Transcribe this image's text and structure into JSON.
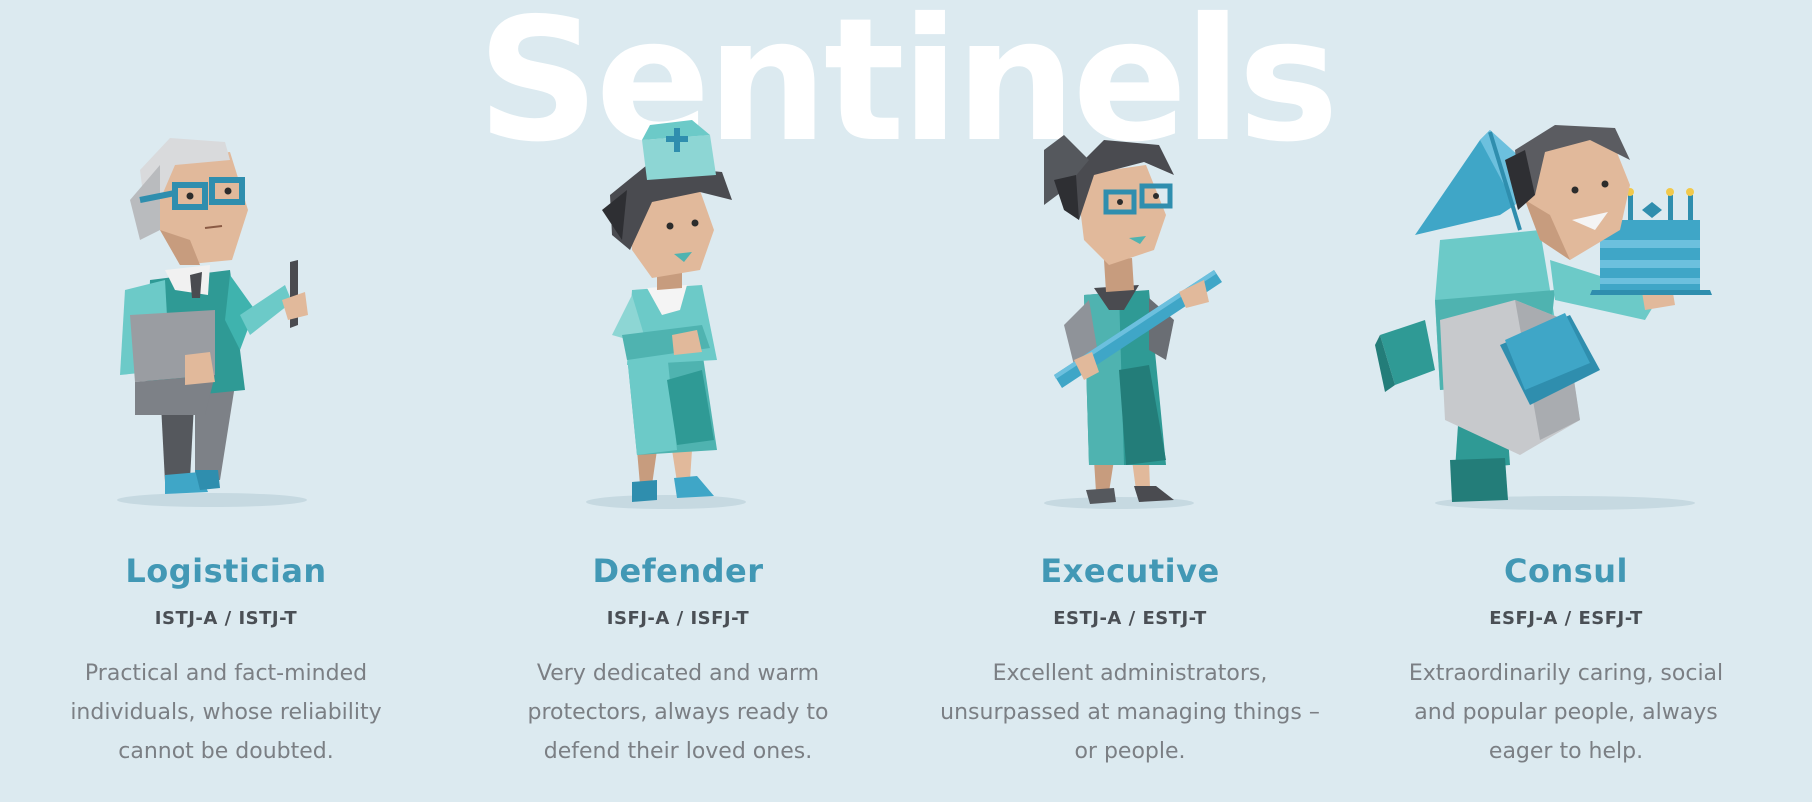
{
  "page": {
    "title": "Sentinels",
    "colors": {
      "background": "#dceaf0",
      "title": "#ffffff",
      "accent": "#4298b5",
      "code": "#4a4f55",
      "description": "#7b7f84",
      "teal": "#4fb3b0",
      "blue": "#3fa6c7",
      "skin": "#e1b99b",
      "hair_dark": "#4a4b50",
      "gray": "#8f9399"
    }
  },
  "types": [
    {
      "name": "Logistician",
      "code": "ISTJ-A / ISTJ-T",
      "description": "Practical and fact-minded individuals, whose reliability cannot be doubted.",
      "illustration": "logistician-figure-icon"
    },
    {
      "name": "Defender",
      "code": "ISFJ-A / ISFJ-T",
      "description": "Very dedicated and warm protectors, always ready to defend their loved ones.",
      "illustration": "defender-figure-icon"
    },
    {
      "name": "Executive",
      "code": "ESTJ-A / ESTJ-T",
      "description": "Excellent administrators, unsurpassed at managing things – or people.",
      "illustration": "executive-figure-icon"
    },
    {
      "name": "Consul",
      "code": "ESFJ-A / ESFJ-T",
      "description": "Extraordinarily caring, social and popular people, always eager to help.",
      "illustration": "consul-figure-icon"
    }
  ]
}
